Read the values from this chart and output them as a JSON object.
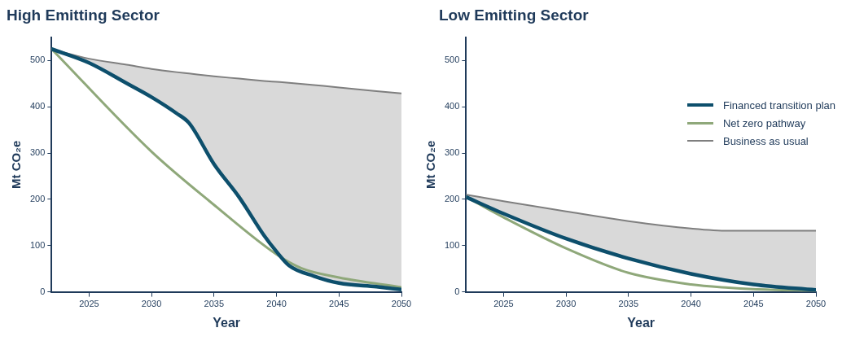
{
  "chart_data": [
    {
      "type": "line",
      "title": "High Emitting Sector",
      "xlabel": "Year",
      "ylabel": "Mt CO₂e",
      "xlim": [
        2022,
        2050
      ],
      "xticks": [
        2025,
        2030,
        2035,
        2040,
        2045,
        2050
      ],
      "ylim": [
        0,
        550
      ],
      "yticks": [
        0,
        100,
        200,
        300,
        400,
        500
      ],
      "grid": false,
      "legend": false,
      "series": [
        {
          "color": "#7f7f7f",
          "x": [
            2022,
            2025,
            2028,
            2030,
            2032,
            2033,
            2035,
            2037,
            2039,
            2040,
            2041,
            2043,
            2045,
            2048,
            2050
          ],
          "values": [
            525,
            504,
            491,
            482,
            475,
            472,
            466,
            461,
            456,
            454,
            452,
            447,
            442,
            434,
            429
          ],
          "lower": [
            525,
            495,
            451,
            421,
            386,
            365,
            276,
            205,
            122,
            87,
            57,
            34,
            19,
            11,
            5
          ],
          "upper": [
            525,
            504,
            491,
            482,
            475,
            472,
            466,
            461,
            456,
            454,
            452,
            447,
            442,
            434,
            429
          ]
        },
        {
          "color": "#8fa87a",
          "x": [
            2022,
            2030,
            2035,
            2040,
            2042,
            2045,
            2050
          ],
          "values": [
            525,
            303,
            188,
            81,
            51,
            31,
            10
          ]
        },
        {
          "color": "#0d4f6c",
          "x": [
            2022,
            2025,
            2028,
            2030,
            2032,
            2033,
            2035,
            2037,
            2039,
            2040,
            2041,
            2043,
            2045,
            2048,
            2050
          ],
          "values": [
            525,
            495,
            451,
            421,
            386,
            365,
            276,
            205,
            122,
            87,
            57,
            34,
            19,
            11,
            5
          ]
        }
      ]
    },
    {
      "type": "line",
      "title": "Low Emitting Sector",
      "xlabel": "Year",
      "ylabel": "Mt CO₂e",
      "xlim": [
        2022,
        2050
      ],
      "xticks": [
        2025,
        2030,
        2035,
        2040,
        2045,
        2050
      ],
      "ylim": [
        0,
        550
      ],
      "yticks": [
        0,
        100,
        200,
        300,
        400,
        500
      ],
      "grid": false,
      "legend": "top right",
      "series": [
        {
          "name": "Business as usual",
          "color": "#7f7f7f",
          "x": [
            2022,
            2025,
            2030,
            2035,
            2040,
            2043,
            2050
          ],
          "values": [
            210,
            196,
            174,
            153,
            137,
            132,
            132
          ],
          "lower": [
            205,
            169,
            115,
            72,
            39,
            24,
            4
          ],
          "upper": [
            210,
            196,
            174,
            153,
            137,
            132,
            132
          ]
        },
        {
          "name": "Net zero pathway",
          "color": "#8fa87a",
          "x": [
            2022,
            2025,
            2030,
            2035,
            2040,
            2043,
            2045,
            2050
          ],
          "values": [
            205,
            161,
            94,
            41,
            16,
            9,
            6,
            2
          ]
        },
        {
          "name": "Financed transition plan",
          "color": "#0d4f6c",
          "x": [
            2022,
            2025,
            2030,
            2035,
            2040,
            2045,
            2050
          ],
          "values": [
            205,
            169,
            115,
            72,
            39,
            16,
            4
          ]
        }
      ]
    }
  ]
}
